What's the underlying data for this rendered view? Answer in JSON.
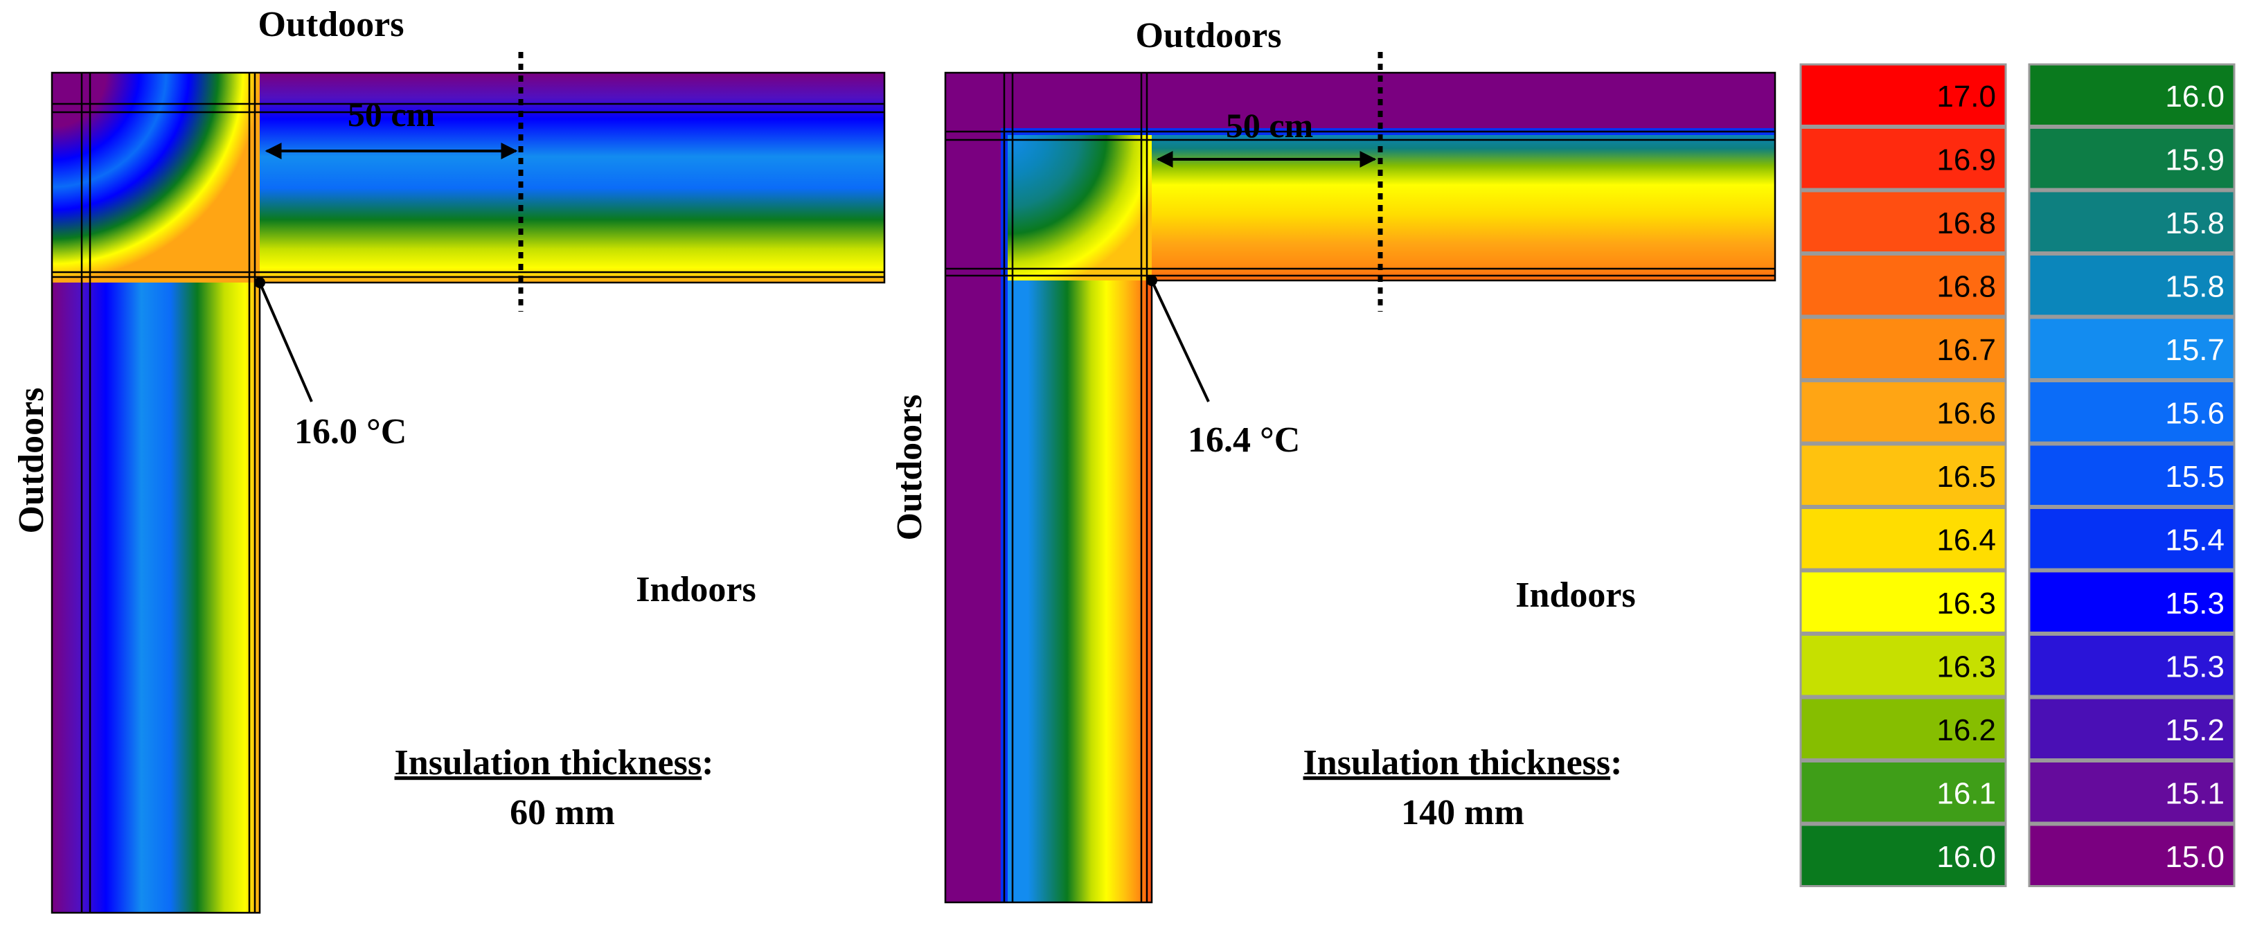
{
  "panels": [
    {
      "outdoors_top": "Outdoors",
      "outdoors_side": "Outdoors",
      "indoors": "Indoors",
      "distance": "50 cm",
      "corner_temp": "16.0 °C",
      "insulation_label": "Insulation thickness",
      "insulation_colon": ":",
      "thickness": "60 mm"
    },
    {
      "outdoors_top": "Outdoors",
      "outdoors_side": "Outdoors",
      "indoors": "Indoors",
      "distance": "50 cm",
      "corner_temp": "16.4 °C",
      "insulation_label": "Insulation thickness",
      "insulation_colon": ":",
      "thickness": "140 mm"
    }
  ],
  "legend": {
    "columns": [
      [
        {
          "value": "17.0",
          "color": "#ff0000",
          "text": "#000000"
        },
        {
          "value": "16.9",
          "color": "#ff2a0e",
          "text": "#000000"
        },
        {
          "value": "16.8",
          "color": "#ff4e11",
          "text": "#000000"
        },
        {
          "value": "16.8",
          "color": "#ff6a10",
          "text": "#000000"
        },
        {
          "value": "16.7",
          "color": "#ff8a10",
          "text": "#000000"
        },
        {
          "value": "16.6",
          "color": "#ffa514",
          "text": "#000000"
        },
        {
          "value": "16.5",
          "color": "#ffc20e",
          "text": "#000000"
        },
        {
          "value": "16.4",
          "color": "#ffdd00",
          "text": "#000000"
        },
        {
          "value": "16.3",
          "color": "#ffff00",
          "text": "#000000"
        },
        {
          "value": "16.3",
          "color": "#c6e000",
          "text": "#000000"
        },
        {
          "value": "16.2",
          "color": "#86be00",
          "text": "#000000"
        },
        {
          "value": "16.1",
          "color": "#3f9e18",
          "text": "#ffffff"
        },
        {
          "value": "16.0",
          "color": "#0a7a1e",
          "text": "#ffffff"
        }
      ],
      [
        {
          "value": "16.0",
          "color": "#0a7a1e",
          "text": "#ffffff"
        },
        {
          "value": "15.9",
          "color": "#0d7d46",
          "text": "#ffffff"
        },
        {
          "value": "15.8",
          "color": "#0e8080",
          "text": "#ffffff"
        },
        {
          "value": "15.8",
          "color": "#0b86bb",
          "text": "#ffffff"
        },
        {
          "value": "15.7",
          "color": "#138cf0",
          "text": "#ffffff"
        },
        {
          "value": "15.6",
          "color": "#0b6cf8",
          "text": "#ffffff"
        },
        {
          "value": "15.5",
          "color": "#0650f8",
          "text": "#ffffff"
        },
        {
          "value": "15.4",
          "color": "#0532f5",
          "text": "#ffffff"
        },
        {
          "value": "15.3",
          "color": "#0000ff",
          "text": "#ffffff"
        },
        {
          "value": "15.3",
          "color": "#2a14d8",
          "text": "#ffffff"
        },
        {
          "value": "15.2",
          "color": "#4a0fb5",
          "text": "#ffffff"
        },
        {
          "value": "15.1",
          "color": "#650b9c",
          "text": "#ffffff"
        },
        {
          "value": "15.0",
          "color": "#7a0080",
          "text": "#ffffff"
        }
      ]
    ]
  }
}
